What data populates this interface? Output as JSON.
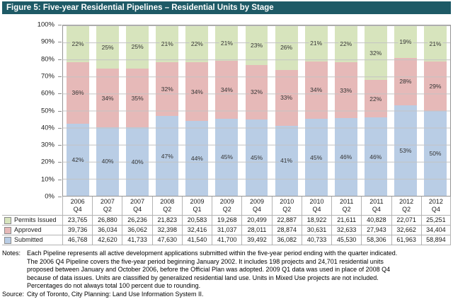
{
  "title": "Figure 5: Five-year Residential Pipelines – Residential Units by Stage",
  "chart_data": {
    "type": "bar",
    "stacked": true,
    "percent_scale": true,
    "title": "Figure 5: Five-year Residential Pipelines – Residential Units by Stage",
    "xlabel": "",
    "ylabel": "",
    "ylim": [
      0,
      100
    ],
    "grid": true,
    "legend_position": "table-left",
    "y_ticks": [
      "100%",
      "90%",
      "80%",
      "70%",
      "60%",
      "50%",
      "40%",
      "30%",
      "20%",
      "10%",
      "0%"
    ],
    "categories": [
      {
        "year": "2006",
        "quarter": "Q4"
      },
      {
        "year": "2007",
        "quarter": "Q2"
      },
      {
        "year": "2007",
        "quarter": "Q4"
      },
      {
        "year": "2008",
        "quarter": "Q2"
      },
      {
        "year": "2009",
        "quarter": "Q1"
      },
      {
        "year": "2009",
        "quarter": "Q2"
      },
      {
        "year": "2009",
        "quarter": "Q4"
      },
      {
        "year": "2010",
        "quarter": "Q2"
      },
      {
        "year": "2010",
        "quarter": "Q4"
      },
      {
        "year": "2011",
        "quarter": "Q2"
      },
      {
        "year": "2011",
        "quarter": "Q4"
      },
      {
        "year": "2012",
        "quarter": "Q2"
      },
      {
        "year": "2012",
        "quarter": "Q4"
      }
    ],
    "series": [
      {
        "name": "Permits Issued",
        "color": "#D7E4BD",
        "position": "top",
        "values": [
          23765,
          26880,
          26236,
          21823,
          20583,
          19268,
          20499,
          22887,
          18922,
          21611,
          40828,
          22071,
          25251
        ],
        "value_labels": [
          "23,765",
          "26,880",
          "26,236",
          "21,823",
          "20,583",
          "19,268",
          "20,499",
          "22,887",
          "18,922",
          "21,611",
          "40,828",
          "22,071",
          "25,251"
        ],
        "percent_labels": [
          "22%",
          "25%",
          "25%",
          "21%",
          "22%",
          "21%",
          "23%",
          "26%",
          "21%",
          "22%",
          "32%",
          "19%",
          "21%"
        ]
      },
      {
        "name": "Approved",
        "color": "#E6B9B8",
        "position": "middle",
        "values": [
          39736,
          36034,
          36062,
          32398,
          32416,
          31037,
          28011,
          28874,
          30631,
          32633,
          27943,
          32662,
          34404
        ],
        "value_labels": [
          "39,736",
          "36,034",
          "36,062",
          "32,398",
          "32,416",
          "31,037",
          "28,011",
          "28,874",
          "30,631",
          "32,633",
          "27,943",
          "32,662",
          "34,404"
        ],
        "percent_labels": [
          "36%",
          "34%",
          "35%",
          "32%",
          "34%",
          "34%",
          "32%",
          "33%",
          "34%",
          "33%",
          "22%",
          "28%",
          "29%"
        ]
      },
      {
        "name": "Submitted",
        "color": "#B9CDE5",
        "position": "bottom",
        "values": [
          46768,
          42620,
          41733,
          47630,
          41540,
          41700,
          39492,
          36082,
          40733,
          45530,
          58306,
          61963,
          58894
        ],
        "value_labels": [
          "46,768",
          "42,620",
          "41,733",
          "47,630",
          "41,540",
          "41,700",
          "39,492",
          "36,082",
          "40,733",
          "45,530",
          "58,306",
          "61,963",
          "58,894"
        ],
        "percent_labels": [
          "42%",
          "40%",
          "40%",
          "47%",
          "44%",
          "45%",
          "45%",
          "41%",
          "45%",
          "46%",
          "46%",
          "53%",
          "50%"
        ]
      }
    ]
  },
  "notes": {
    "label": "Notes:",
    "lines": [
      "Each Pipeline represents all active development applications submitted within the five-year period ending with the quarter indicated.",
      "The 2006 Q4 Pipeline covers the five-year period beginning January 2002. It includes 198 projects and 24,701 residential units",
      "proposed between January and October 2006, before the Official Plan was adopted. 2009 Q1 data was used in place of 2008 Q4",
      "because of data issues.  Units are classified by generalized residential land use.  Units in Mixed Use projects are not included.",
      "Percentages do not always total 100 percent due to rounding."
    ]
  },
  "source": {
    "label": "Source:",
    "text": "City of Toronto, City Planning: Land Use Information System II."
  },
  "colors": {
    "title_bar_bg": "#1E5A66",
    "title_bar_text": "#FFFFFF",
    "permits_issued": "#D7E4BD",
    "approved": "#E6B9B8",
    "submitted": "#B9CDE5",
    "gridline": "#C3C3C3",
    "plot_border": "#959595",
    "table_border": "#B3B3B3"
  }
}
